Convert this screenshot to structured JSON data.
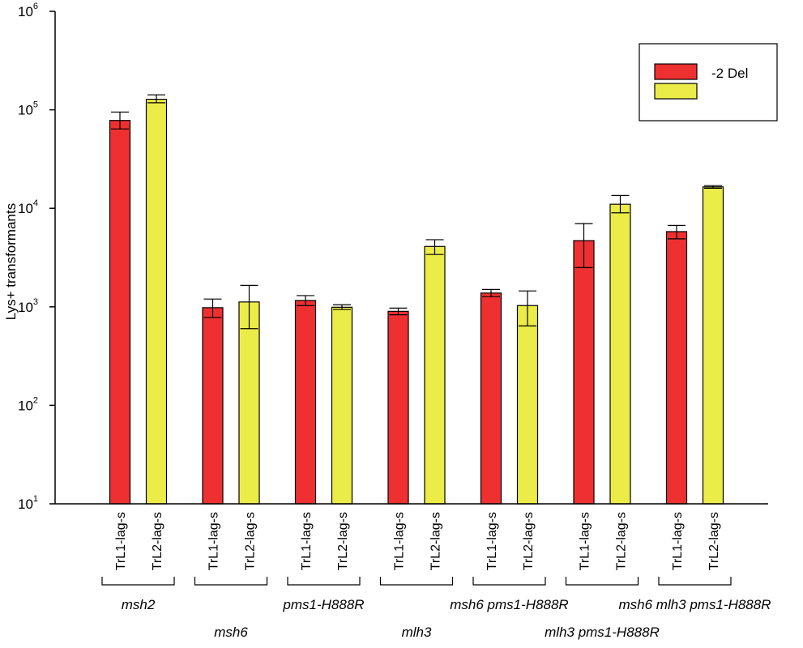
{
  "chart_data": {
    "type": "bar",
    "ylabel": "Lys+ transformants",
    "yscale": "log",
    "ylim": [
      10,
      1000000
    ],
    "yticks": [
      {
        "base": "10",
        "exp": "1"
      },
      {
        "base": "10",
        "exp": "2"
      },
      {
        "base": "10",
        "exp": "3"
      },
      {
        "base": "10",
        "exp": "4"
      },
      {
        "base": "10",
        "exp": "5"
      },
      {
        "base": "10",
        "exp": "6"
      }
    ],
    "legend": {
      "position": "top-right",
      "entries": [
        {
          "color": "#ee3030",
          "label": ""
        },
        {
          "color": "#ecec48",
          "label": "-2 Del"
        }
      ]
    },
    "colors": {
      "TrL1-lag-s": "#ee3030",
      "TrL2-lag-s": "#ecec48"
    },
    "groups": [
      {
        "label": "msh2",
        "label_row": 1,
        "bars": [
          {
            "category": "TrL1-lag-s",
            "value": 78000,
            "err_low": 64000,
            "err_high": 95000
          },
          {
            "category": "TrL2-lag-s",
            "value": 128000,
            "err_low": 118000,
            "err_high": 142000
          }
        ]
      },
      {
        "label": "msh6",
        "label_row": 2,
        "bars": [
          {
            "category": "TrL1-lag-s",
            "value": 980,
            "err_low": 780,
            "err_high": 1200
          },
          {
            "category": "TrL2-lag-s",
            "value": 1120,
            "err_low": 600,
            "err_high": 1650
          }
        ]
      },
      {
        "label": "pms1-H888R",
        "label_row": 1,
        "bars": [
          {
            "category": "TrL1-lag-s",
            "value": 1160,
            "err_low": 1030,
            "err_high": 1300
          },
          {
            "category": "TrL2-lag-s",
            "value": 990,
            "err_low": 940,
            "err_high": 1050
          }
        ]
      },
      {
        "label": "mlh3",
        "label_row": 2,
        "bars": [
          {
            "category": "TrL1-lag-s",
            "value": 900,
            "err_low": 830,
            "err_high": 970
          },
          {
            "category": "TrL2-lag-s",
            "value": 4100,
            "err_low": 3400,
            "err_high": 4800
          }
        ]
      },
      {
        "label": "msh6 pms1-H888R",
        "label_row": 1,
        "bars": [
          {
            "category": "TrL1-lag-s",
            "value": 1380,
            "err_low": 1270,
            "err_high": 1500
          },
          {
            "category": "TrL2-lag-s",
            "value": 1030,
            "err_low": 640,
            "err_high": 1450
          }
        ]
      },
      {
        "label": "mlh3 pms1-H888R",
        "label_row": 2,
        "bars": [
          {
            "category": "TrL1-lag-s",
            "value": 4700,
            "err_low": 2500,
            "err_high": 7000
          },
          {
            "category": "TrL2-lag-s",
            "value": 11000,
            "err_low": 9000,
            "err_high": 13500
          }
        ]
      },
      {
        "label": "msh6 mlh3 pms1-H888R",
        "label_row": 1,
        "bars": [
          {
            "category": "TrL1-lag-s",
            "value": 5800,
            "err_low": 4900,
            "err_high": 6700
          },
          {
            "category": "TrL2-lag-s",
            "value": 16500,
            "err_low": 16000,
            "err_high": 17000
          }
        ]
      }
    ]
  }
}
